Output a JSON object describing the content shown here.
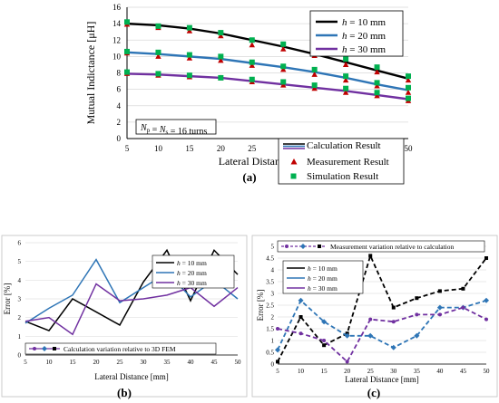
{
  "chart_data": [
    {
      "panel": "(a)",
      "type": "line",
      "xlabel": "Lateral Distance  [mm]",
      "ylabel": "Mutual Indictance  [μH]",
      "x": [
        5,
        10,
        15,
        20,
        25,
        30,
        35,
        40,
        45,
        50
      ],
      "xlim": [
        5,
        50
      ],
      "ylim": [
        0,
        16
      ],
      "yticks": [
        0,
        2,
        4,
        6,
        8,
        10,
        12,
        14,
        16
      ],
      "annotation": "Np = Ns = 16 turns",
      "colors": {
        "h10": "#000000",
        "h20": "#2e75b6",
        "h30": "#7030a0",
        "measurement": "#c00000",
        "simulation": "#00b050"
      },
      "legend_series": [
        {
          "key": "h10",
          "label": "h = 10 mm"
        },
        {
          "key": "h20",
          "label": "h = 20 mm"
        },
        {
          "key": "h30",
          "label": "h =  30 mm"
        }
      ],
      "legend_methods": [
        "Calculation Result",
        "Measurement Result",
        "Simulation Result"
      ],
      "series": [
        {
          "key": "h10",
          "calculation": [
            14.0,
            13.8,
            13.4,
            12.8,
            12.0,
            11.2,
            10.3,
            9.3,
            8.3,
            7.3
          ],
          "measurement": [
            13.9,
            13.5,
            13.1,
            12.5,
            11.4,
            10.9,
            10.1,
            9.0,
            8.1,
            7.1
          ],
          "simulation": [
            14.2,
            13.7,
            13.5,
            12.9,
            12.0,
            11.5,
            10.8,
            9.7,
            8.7,
            7.6
          ]
        },
        {
          "key": "h20",
          "calculation": [
            10.5,
            10.3,
            10.0,
            9.7,
            9.2,
            8.7,
            8.1,
            7.4,
            6.6,
            5.9
          ],
          "measurement": [
            10.4,
            10.0,
            9.8,
            9.5,
            8.9,
            8.4,
            7.8,
            7.1,
            6.4,
            5.6
          ],
          "simulation": [
            10.6,
            10.5,
            10.2,
            10.0,
            9.3,
            8.8,
            8.4,
            7.6,
            6.8,
            6.2
          ]
        },
        {
          "key": "h30",
          "calculation": [
            7.9,
            7.8,
            7.6,
            7.4,
            7.0,
            6.6,
            6.2,
            5.8,
            5.3,
            4.8
          ],
          "measurement": [
            7.9,
            7.7,
            7.5,
            7.4,
            6.9,
            6.5,
            6.1,
            5.6,
            5.2,
            4.6
          ],
          "simulation": [
            8.1,
            7.9,
            7.7,
            7.4,
            7.2,
            6.9,
            6.5,
            6.1,
            5.6,
            4.9
          ]
        }
      ]
    },
    {
      "panel": "(b)",
      "type": "line",
      "xlabel": "Lateral Distance [mm]",
      "ylabel": "Error [%]",
      "x": [
        5,
        10,
        15,
        20,
        25,
        30,
        35,
        40,
        45,
        50
      ],
      "xlim": [
        5,
        50
      ],
      "ylim": [
        0,
        6
      ],
      "yticks": [
        0,
        1,
        2,
        3,
        4,
        5,
        6
      ],
      "legend_series": [
        {
          "key": "h10",
          "label": "h = 10 mm"
        },
        {
          "key": "h20",
          "label": "h = 20 mm"
        },
        {
          "key": "h30",
          "label": "h = 30 mm"
        }
      ],
      "legend_note": "Calculation variation relative to 3D FEM",
      "colors": {
        "h10": "#000000",
        "h20": "#2e75b6",
        "h30": "#7030a0"
      },
      "series": [
        {
          "key": "h10",
          "values": [
            1.8,
            1.3,
            3.0,
            2.3,
            1.6,
            3.9,
            5.6,
            2.9,
            5.6,
            4.3
          ]
        },
        {
          "key": "h20",
          "values": [
            1.7,
            2.5,
            3.2,
            5.1,
            2.8,
            3.6,
            4.4,
            3.1,
            4.0,
            3.0
          ]
        },
        {
          "key": "h30",
          "values": [
            1.8,
            2.0,
            1.1,
            3.8,
            2.9,
            3.0,
            3.2,
            3.6,
            2.6,
            3.6
          ]
        }
      ]
    },
    {
      "panel": "(c)",
      "type": "line",
      "xlabel": "Lateral Distance [mm]",
      "ylabel": "Error [%]",
      "x": [
        5,
        10,
        15,
        20,
        25,
        30,
        35,
        40,
        45,
        50
      ],
      "xlim": [
        5,
        50
      ],
      "ylim": [
        0,
        5
      ],
      "yticks": [
        0,
        0.5,
        1,
        1.5,
        2,
        2.5,
        3,
        3.5,
        4,
        4.5,
        5
      ],
      "ytick_labels": [
        "0",
        "0.5",
        "1",
        "1.5",
        "2",
        "2.5",
        "3",
        "3.5",
        "4",
        "4.5",
        "5"
      ],
      "legend_series": [
        {
          "key": "h10",
          "label": "h = 10 mm"
        },
        {
          "key": "h20",
          "label": "h = 20 mm"
        },
        {
          "key": "h30",
          "label": "h = 30 mm"
        }
      ],
      "legend_note": "Measurement variation relative to calculation",
      "colors": {
        "h10": "#000000",
        "h20": "#2e75b6",
        "h30": "#7030a0"
      },
      "line_style": "dashed",
      "series": [
        {
          "key": "h10",
          "values": [
            0.1,
            2.0,
            0.8,
            1.3,
            4.6,
            2.4,
            2.8,
            3.1,
            3.2,
            4.5
          ]
        },
        {
          "key": "h20",
          "values": [
            0.6,
            2.7,
            1.8,
            1.2,
            1.2,
            0.7,
            1.2,
            2.4,
            2.4,
            2.7
          ]
        },
        {
          "key": "h30",
          "values": [
            1.5,
            1.3,
            1.0,
            0.1,
            1.9,
            1.8,
            2.1,
            2.1,
            2.4,
            1.9
          ]
        }
      ]
    }
  ]
}
